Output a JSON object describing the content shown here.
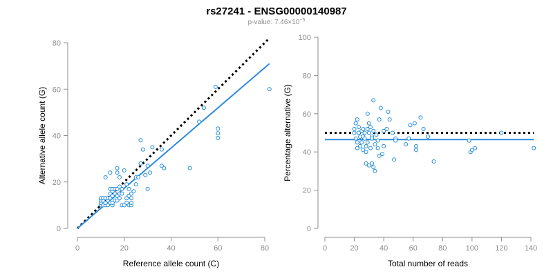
{
  "title": "rs27241 - ENSG00000140987",
  "subtitle_main": "p-value: 7.46×10",
  "subtitle_exp": "−5",
  "colors": {
    "points": "#1f8adb",
    "fit_line": "#2c8ae0",
    "reference_line": "#000000",
    "axis": "#8c8c8c"
  },
  "chart_data": [
    {
      "type": "scatter",
      "xlabel": "Reference allele count (C)",
      "ylabel": "Alternative allele count (G)",
      "xlim": [
        0,
        80
      ],
      "ylim": [
        0,
        80
      ],
      "xticks": [
        0,
        20,
        40,
        60,
        80
      ],
      "yticks": [
        0,
        20,
        40,
        60,
        80
      ],
      "points": [
        [
          10,
          10
        ],
        [
          10,
          11
        ],
        [
          10,
          12
        ],
        [
          10,
          13
        ],
        [
          11,
          10
        ],
        [
          11,
          12
        ],
        [
          11,
          13
        ],
        [
          12,
          10
        ],
        [
          12,
          11
        ],
        [
          12,
          13
        ],
        [
          12,
          22
        ],
        [
          13,
          10
        ],
        [
          13,
          12
        ],
        [
          13,
          13
        ],
        [
          14,
          11
        ],
        [
          14,
          13
        ],
        [
          14,
          15
        ],
        [
          14,
          17
        ],
        [
          14,
          24
        ],
        [
          15,
          10
        ],
        [
          15,
          11
        ],
        [
          15,
          14
        ],
        [
          15,
          16
        ],
        [
          15,
          17
        ],
        [
          16,
          12
        ],
        [
          16,
          15
        ],
        [
          16,
          17
        ],
        [
          17,
          12
        ],
        [
          17,
          14
        ],
        [
          17,
          17
        ],
        [
          17,
          24
        ],
        [
          17,
          26
        ],
        [
          18,
          13
        ],
        [
          18,
          15
        ],
        [
          18,
          18
        ],
        [
          18,
          22
        ],
        [
          19,
          10
        ],
        [
          19,
          15
        ],
        [
          19,
          17
        ],
        [
          20,
          10
        ],
        [
          20,
          25
        ],
        [
          21,
          11
        ],
        [
          21,
          13
        ],
        [
          21,
          19
        ],
        [
          22,
          10
        ],
        [
          22,
          14
        ],
        [
          22,
          17
        ],
        [
          23,
          10
        ],
        [
          23,
          11
        ],
        [
          23,
          13
        ],
        [
          23,
          15
        ],
        [
          24,
          16
        ],
        [
          25,
          19
        ],
        [
          25,
          22
        ],
        [
          26,
          22
        ],
        [
          27,
          28
        ],
        [
          27,
          38
        ],
        [
          28,
          34
        ],
        [
          29,
          23
        ],
        [
          30,
          17
        ],
        [
          30,
          27
        ],
        [
          31,
          24
        ],
        [
          32,
          35
        ],
        [
          36,
          27
        ],
        [
          36,
          34
        ],
        [
          37,
          26
        ],
        [
          48,
          26
        ],
        [
          52,
          46
        ],
        [
          54,
          52
        ],
        [
          59,
          61
        ],
        [
          60,
          39
        ],
        [
          60,
          41
        ],
        [
          60,
          43
        ],
        [
          82,
          60
        ]
      ],
      "fit_line": [
        [
          0,
          0
        ],
        [
          82,
          71
        ]
      ],
      "reference_line": [
        [
          0,
          0
        ],
        [
          82,
          82
        ]
      ]
    },
    {
      "type": "scatter",
      "xlabel": "Total number of reads",
      "ylabel": "Percentage alternative (G)",
      "xlim": [
        0,
        140
      ],
      "ylim": [
        0,
        100
      ],
      "xticks": [
        0,
        20,
        40,
        60,
        80,
        100,
        120,
        140
      ],
      "yticks": [
        0,
        20,
        40,
        60,
        80,
        100
      ],
      "points": [
        [
          20,
          50
        ],
        [
          20,
          52
        ],
        [
          21,
          55
        ],
        [
          21,
          47
        ],
        [
          22,
          57
        ],
        [
          22,
          45
        ],
        [
          22,
          42
        ],
        [
          23,
          53
        ],
        [
          23,
          50
        ],
        [
          24,
          43
        ],
        [
          24,
          48
        ],
        [
          25,
          51
        ],
        [
          25,
          45
        ],
        [
          26,
          52
        ],
        [
          26,
          48
        ],
        [
          26,
          41
        ],
        [
          27,
          50
        ],
        [
          27,
          47
        ],
        [
          28,
          43
        ],
        [
          28,
          34
        ],
        [
          28,
          40
        ],
        [
          29,
          60
        ],
        [
          29,
          52
        ],
        [
          29,
          45
        ],
        [
          30,
          50
        ],
        [
          30,
          55
        ],
        [
          30,
          33
        ],
        [
          31,
          42
        ],
        [
          31,
          53
        ],
        [
          32,
          48
        ],
        [
          32,
          34
        ],
        [
          32,
          47
        ],
        [
          33,
          67
        ],
        [
          33,
          51
        ],
        [
          33,
          32
        ],
        [
          34,
          30
        ],
        [
          34,
          44
        ],
        [
          35,
          49
        ],
        [
          36,
          46
        ],
        [
          36,
          42
        ],
        [
          37,
          57
        ],
        [
          37,
          38
        ],
        [
          38,
          63
        ],
        [
          39,
          39
        ],
        [
          40,
          51
        ],
        [
          40,
          43
        ],
        [
          42,
          52
        ],
        [
          43,
          61
        ],
        [
          44,
          57
        ],
        [
          46,
          50
        ],
        [
          47,
          36
        ],
        [
          48,
          47
        ],
        [
          48,
          46
        ],
        [
          55,
          44
        ],
        [
          57,
          47
        ],
        [
          58,
          54
        ],
        [
          61,
          55
        ],
        [
          62,
          43
        ],
        [
          62,
          41
        ],
        [
          65,
          58
        ],
        [
          67,
          52
        ],
        [
          70,
          48
        ],
        [
          74,
          35
        ],
        [
          98,
          46
        ],
        [
          99,
          40
        ],
        [
          100,
          41
        ],
        [
          102,
          42
        ],
        [
          120,
          50
        ],
        [
          142,
          42
        ]
      ],
      "fit_line": [
        [
          0,
          46.5
        ],
        [
          142,
          46.5
        ]
      ],
      "reference_line": [
        [
          0,
          50
        ],
        [
          142,
          50
        ]
      ]
    }
  ]
}
